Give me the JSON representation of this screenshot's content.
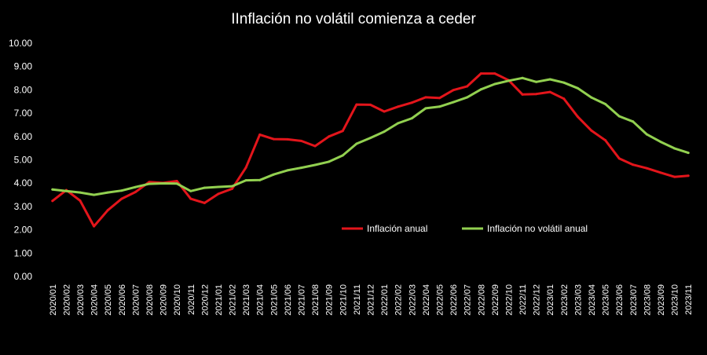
{
  "chart_data": {
    "type": "line",
    "title": "IInflación no volátil comienza a ceder",
    "xlabel": "",
    "ylabel": "",
    "ylim": [
      0,
      10
    ],
    "yticks": [
      "0.00",
      "1.00",
      "2.00",
      "3.00",
      "4.00",
      "5.00",
      "6.00",
      "7.00",
      "8.00",
      "9.00",
      "10.00"
    ],
    "grid": false,
    "legend_position": "center-right",
    "categories": [
      "2020/01",
      "2020/02",
      "2020/03",
      "2020/04",
      "2020/05",
      "2020/06",
      "2020/07",
      "2020/08",
      "2020/09",
      "2020/10",
      "2020/11",
      "2020/12",
      "2021/01",
      "2021/02",
      "2021/03",
      "2021/04",
      "2021/05",
      "2021/06",
      "2021/07",
      "2021/08",
      "2021/09",
      "2021/10",
      "2021/11",
      "2021/12",
      "2022/01",
      "2022/02",
      "2022/03",
      "2022/04",
      "2022/05",
      "2022/06",
      "2022/07",
      "2022/08",
      "2022/09",
      "2022/10",
      "2022/11",
      "2022/12",
      "2023/01",
      "2023/02",
      "2023/03",
      "2023/04",
      "2023/05",
      "2023/06",
      "2023/07",
      "2023/08",
      "2023/09",
      "2023/10",
      "2023/11"
    ],
    "series": [
      {
        "name": "Inflación anual",
        "color": "#e3151b",
        "values": [
          3.24,
          3.7,
          3.25,
          2.15,
          2.84,
          3.33,
          3.62,
          4.05,
          4.01,
          4.09,
          3.33,
          3.15,
          3.54,
          3.76,
          4.67,
          6.08,
          5.89,
          5.88,
          5.81,
          5.59,
          6.0,
          6.24,
          7.37,
          7.36,
          7.07,
          7.28,
          7.45,
          7.68,
          7.65,
          7.99,
          8.15,
          8.7,
          8.7,
          8.41,
          7.8,
          7.82,
          7.91,
          7.62,
          6.85,
          6.25,
          5.84,
          5.06,
          4.79,
          4.64,
          4.45,
          4.27,
          4.32
        ]
      },
      {
        "name": "Inflación no volátil anual",
        "color": "#92d050",
        "values": [
          3.73,
          3.66,
          3.6,
          3.5,
          3.6,
          3.68,
          3.83,
          3.97,
          3.99,
          3.98,
          3.66,
          3.8,
          3.84,
          3.87,
          4.12,
          4.13,
          4.37,
          4.55,
          4.66,
          4.78,
          4.92,
          5.19,
          5.69,
          5.94,
          6.21,
          6.57,
          6.78,
          7.21,
          7.28,
          7.47,
          7.68,
          8.02,
          8.25,
          8.39,
          8.51,
          8.34,
          8.45,
          8.31,
          8.07,
          7.67,
          7.39,
          6.87,
          6.64,
          6.09,
          5.77,
          5.49,
          5.3
        ]
      }
    ]
  }
}
